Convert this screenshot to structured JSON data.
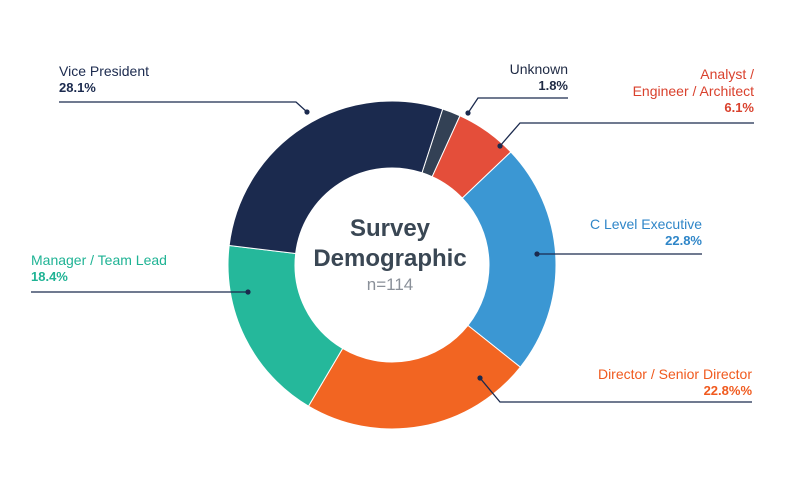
{
  "chart_data": {
    "type": "pie",
    "variant": "donut",
    "center_title_line1": "Survey",
    "center_title_line2": "Demographic",
    "center_subtitle": "n=114",
    "slices": [
      {
        "name": "Unknown",
        "value": 1.8,
        "pct_label": "1.8%",
        "color": "#334155",
        "label_color": "#1f2a44"
      },
      {
        "name": "Analyst / Engineer / Architect",
        "name_lines": [
          "Analyst /",
          "Engineer / Architect"
        ],
        "value": 6.1,
        "pct_label": "6.1%",
        "color": "#e44e3a",
        "label_color": "#d9412d"
      },
      {
        "name": "C Level Executive",
        "value": 22.8,
        "pct_label": "22.8%",
        "color": "#3b97d3",
        "label_color": "#2f86c8"
      },
      {
        "name": "Director / Senior Director",
        "value": 22.8,
        "pct_label": "22.8%%",
        "color": "#f26522",
        "label_color": "#f05a1e"
      },
      {
        "name": "Manager / Team Lead",
        "value": 18.4,
        "pct_label": "18.4%",
        "color": "#25b89b",
        "label_color": "#1fb394"
      },
      {
        "name": "Vice President",
        "value": 28.1,
        "pct_label": "28.1%",
        "color": "#1b2a4e",
        "label_color": "#1b2a4e"
      }
    ]
  }
}
